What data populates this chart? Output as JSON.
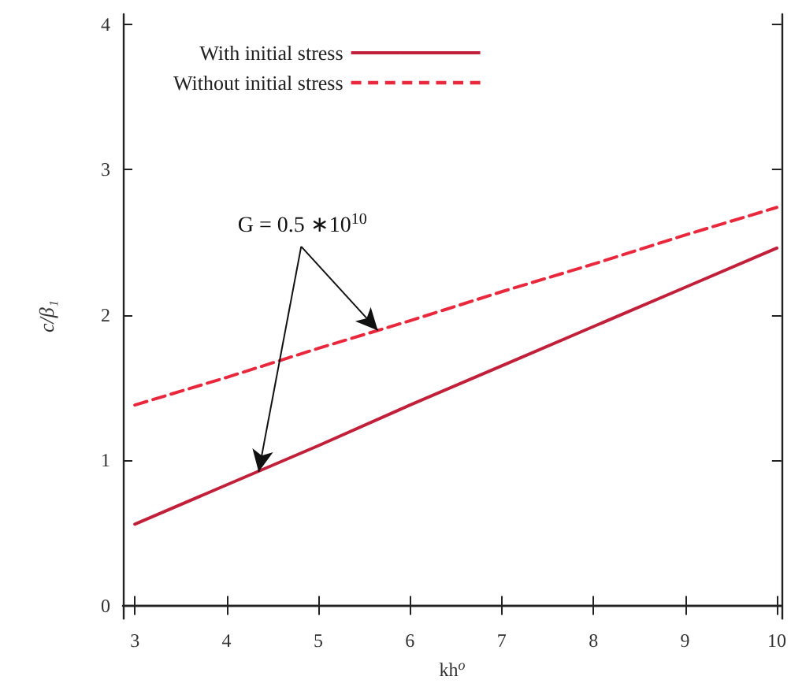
{
  "chart_data": {
    "type": "line",
    "xlabel": "kh$^{o}$",
    "ylabel": "c/β₁",
    "x": [
      3,
      4,
      5,
      6,
      7,
      8,
      9,
      10
    ],
    "series": [
      {
        "name": "With initial stress",
        "color": "#c0203a",
        "line_style": "solid",
        "values": [
          0.56,
          0.83,
          1.1,
          1.38,
          1.65,
          1.92,
          2.19,
          2.46
        ]
      },
      {
        "name": "Without initial stress",
        "color": "#e8283c",
        "line_style": "dashed",
        "values": [
          1.38,
          1.57,
          1.77,
          1.96,
          2.16,
          2.35,
          2.55,
          2.74
        ]
      }
    ],
    "xlim": [
      2.87,
      10.05
    ],
    "xticks": [
      3,
      4,
      5,
      6,
      7,
      8,
      9,
      10
    ],
    "ylim": [
      -0.09,
      4.07
    ],
    "yticks": [
      0,
      1,
      2,
      3,
      4
    ],
    "grid": false,
    "legend": "top left",
    "marker": "none",
    "annotations": [
      {
        "text": "G = 0.5 ∗10$^{10}$",
        "x": 4.35,
        "y": 0.92
      }
    ]
  }
}
